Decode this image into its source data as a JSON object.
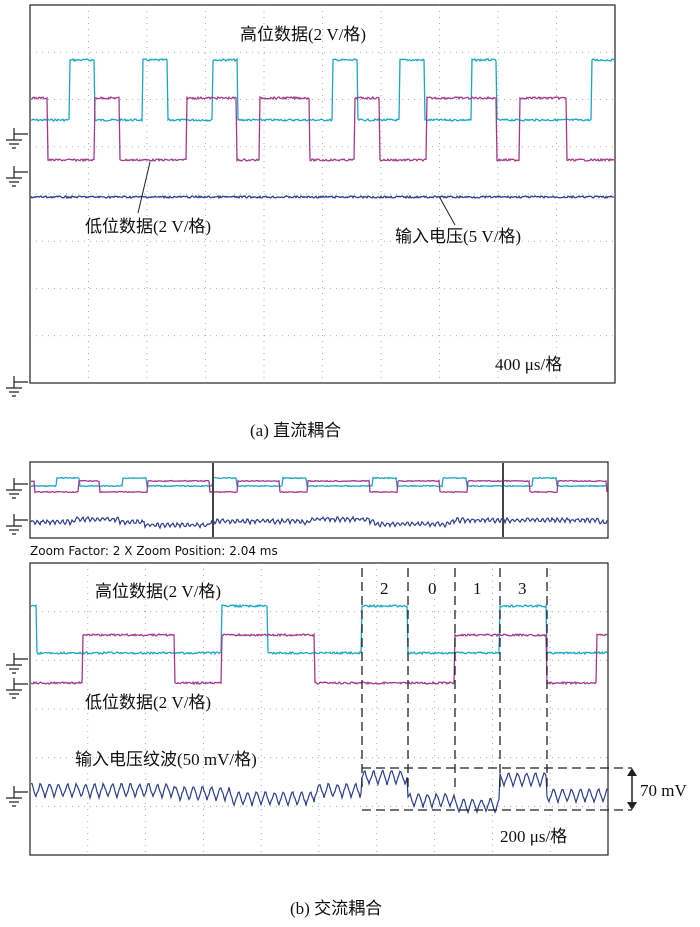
{
  "panel_a": {
    "labels": [
      "高位数据(2 V/格)",
      "低位数据(2 V/格)",
      "输入电压(5 V/格)",
      "400 μs/格"
    ],
    "caption": "(a) 直流耦合"
  },
  "panel_b": {
    "zoom_info": "Zoom Factor: 2 X   Zoom Position: 2.04 ms",
    "labels": [
      "高位数据(2 V/格)",
      "低位数据(2 V/格)",
      "输入电压纹波(50 mV/格)",
      "200 μs/格",
      "70 mV"
    ],
    "codes": [
      "2",
      "0",
      "1",
      "3"
    ],
    "caption": "(b) 交流耦合"
  }
}
